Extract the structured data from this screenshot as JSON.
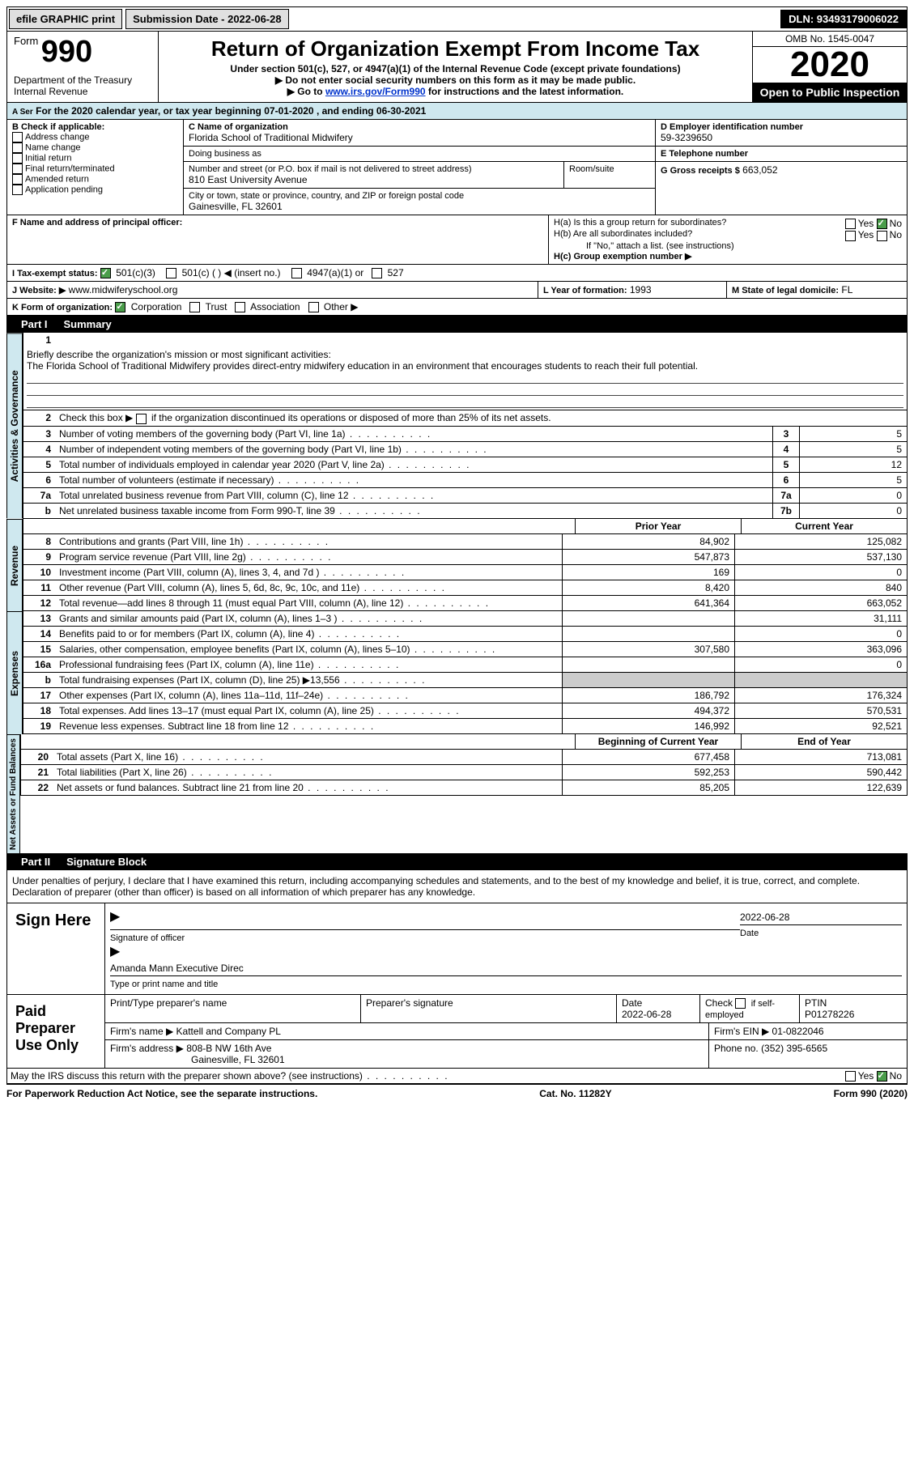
{
  "topbar": {
    "efile": "efile GRAPHIC print",
    "submission": "Submission Date - 2022-06-28",
    "dln": "DLN: 93493179006022"
  },
  "header": {
    "form_label": "Form",
    "form_no": "990",
    "dept": "Department of the Treasury\nInternal Revenue",
    "a_ser": "A Ser",
    "title": "Return of Organization Exempt From Income Tax",
    "sub1": "Under section 501(c), 527, or 4947(a)(1) of the Internal Revenue Code (except private foundations)",
    "sub2": "▶ Do not enter social security numbers on this form as it may be made public.",
    "sub3_pre": "▶ Go to ",
    "sub3_link": "www.irs.gov/Form990",
    "sub3_post": " for instructions and the latest information.",
    "omb": "OMB No. 1545-0047",
    "year": "2020",
    "open": "Open to Public Inspection"
  },
  "period": "For the 2020 calendar year, or tax year beginning 07-01-2020    , and ending 06-30-2021",
  "sectionB": {
    "label": "B Check if applicable:",
    "items": [
      "Address change",
      "Name change",
      "Initial return",
      "Final return/terminated",
      "Amended return",
      "Application pending"
    ]
  },
  "sectionC": {
    "name_label": "C Name of organization",
    "name": "Florida School of Traditional Midwifery",
    "dba_label": "Doing business as",
    "dba": "",
    "addr_label": "Number and street (or P.O. box if mail is not delivered to street address)",
    "room_label": "Room/suite",
    "addr": "810 East University Avenue",
    "city_label": "City or town, state or province, country, and ZIP or foreign postal code",
    "city": "Gainesville, FL  32601"
  },
  "sectionD": {
    "label": "D Employer identification number",
    "value": "59-3239650"
  },
  "sectionE": {
    "label": "E Telephone number",
    "value": ""
  },
  "sectionG": {
    "label": "G Gross receipts $",
    "value": "663,052"
  },
  "sectionF": {
    "label": "F  Name and address of principal officer:",
    "value": ""
  },
  "sectionH": {
    "a": "H(a)  Is this a group return for subordinates?",
    "a_yes": "Yes",
    "a_no": "No",
    "b": "H(b)  Are all subordinates included?",
    "b_yes": "Yes",
    "b_no": "No",
    "b_note": "If \"No,\" attach a list. (see instructions)",
    "c": "H(c)  Group exemption number ▶"
  },
  "sectionI": {
    "label": "I    Tax-exempt status:",
    "opts": [
      "501(c)(3)",
      "501(c) (  ) ◀ (insert no.)",
      "4947(a)(1) or",
      "527"
    ]
  },
  "sectionJ": {
    "label": "J    Website: ▶",
    "value": "www.midwiferyschool.org"
  },
  "sectionK": {
    "label": "K Form of organization:",
    "opts": [
      "Corporation",
      "Trust",
      "Association",
      "Other ▶"
    ]
  },
  "sectionL": {
    "label": "L Year of formation:",
    "value": "1993"
  },
  "sectionM": {
    "label": "M State of legal domicile:",
    "value": "FL"
  },
  "part1": {
    "label": "Part I",
    "title": "Summary"
  },
  "mission": {
    "no": "1",
    "label": "Briefly describe the organization's mission or most significant activities:",
    "text": "The Florida School of Traditional Midwifery provides direct-entry midwifery education in an environment that encourages students to reach their full potential."
  },
  "line2": {
    "no": "2",
    "text": "Check this box ▶",
    "suffix": " if the organization discontinued its operations or disposed of more than 25% of its net assets."
  },
  "governance_label": "Activities & Governance",
  "gov_lines": [
    {
      "no": "3",
      "desc": "Number of voting members of the governing body (Part VI, line 1a)",
      "box": "3",
      "val": "5"
    },
    {
      "no": "4",
      "desc": "Number of independent voting members of the governing body (Part VI, line 1b)",
      "box": "4",
      "val": "5"
    },
    {
      "no": "5",
      "desc": "Total number of individuals employed in calendar year 2020 (Part V, line 2a)",
      "box": "5",
      "val": "12"
    },
    {
      "no": "6",
      "desc": "Total number of volunteers (estimate if necessary)",
      "box": "6",
      "val": "5"
    },
    {
      "no": "7a",
      "desc": "Total unrelated business revenue from Part VIII, column (C), line 12",
      "box": "7a",
      "val": "0"
    },
    {
      "no": "b",
      "desc": "Net unrelated business taxable income from Form 990-T, line 39",
      "box": "7b",
      "val": "0"
    }
  ],
  "col_headers": {
    "prior": "Prior Year",
    "current": "Current Year",
    "begin": "Beginning of Current Year",
    "end": "End of Year"
  },
  "revenue_label": "Revenue",
  "rev_lines": [
    {
      "no": "8",
      "desc": "Contributions and grants (Part VIII, line 1h)",
      "prior": "84,902",
      "cur": "125,082"
    },
    {
      "no": "9",
      "desc": "Program service revenue (Part VIII, line 2g)",
      "prior": "547,873",
      "cur": "537,130"
    },
    {
      "no": "10",
      "desc": "Investment income (Part VIII, column (A), lines 3, 4, and 7d )",
      "prior": "169",
      "cur": "0"
    },
    {
      "no": "11",
      "desc": "Other revenue (Part VIII, column (A), lines 5, 6d, 8c, 9c, 10c, and 11e)",
      "prior": "8,420",
      "cur": "840"
    },
    {
      "no": "12",
      "desc": "Total revenue—add lines 8 through 11 (must equal Part VIII, column (A), line 12)",
      "prior": "641,364",
      "cur": "663,052"
    }
  ],
  "expenses_label": "Expenses",
  "exp_lines": [
    {
      "no": "13",
      "desc": "Grants and similar amounts paid (Part IX, column (A), lines 1–3 )",
      "prior": "",
      "cur": "31,111"
    },
    {
      "no": "14",
      "desc": "Benefits paid to or for members (Part IX, column (A), line 4)",
      "prior": "",
      "cur": "0"
    },
    {
      "no": "15",
      "desc": "Salaries, other compensation, employee benefits (Part IX, column (A), lines 5–10)",
      "prior": "307,580",
      "cur": "363,096"
    },
    {
      "no": "16a",
      "desc": "Professional fundraising fees (Part IX, column (A), line 11e)",
      "prior": "",
      "cur": "0"
    },
    {
      "no": "b",
      "desc": "Total fundraising expenses (Part IX, column (D), line 25) ▶13,556",
      "prior": "grey",
      "cur": "grey"
    },
    {
      "no": "17",
      "desc": "Other expenses (Part IX, column (A), lines 11a–11d, 11f–24e)",
      "prior": "186,792",
      "cur": "176,324"
    },
    {
      "no": "18",
      "desc": "Total expenses. Add lines 13–17 (must equal Part IX, column (A), line 25)",
      "prior": "494,372",
      "cur": "570,531"
    },
    {
      "no": "19",
      "desc": "Revenue less expenses. Subtract line 18 from line 12",
      "prior": "146,992",
      "cur": "92,521"
    }
  ],
  "netassets_label": "Net Assets or Fund Balances",
  "na_lines": [
    {
      "no": "20",
      "desc": "Total assets (Part X, line 16)",
      "prior": "677,458",
      "cur": "713,081"
    },
    {
      "no": "21",
      "desc": "Total liabilities (Part X, line 26)",
      "prior": "592,253",
      "cur": "590,442"
    },
    {
      "no": "22",
      "desc": "Net assets or fund balances. Subtract line 21 from line 20",
      "prior": "85,205",
      "cur": "122,639"
    }
  ],
  "part2": {
    "label": "Part II",
    "title": "Signature Block"
  },
  "penalties": "Under penalties of perjury, I declare that I have examined this return, including accompanying schedules and statements, and to the best of my knowledge and belief, it is true, correct, and complete. Declaration of preparer (other than officer) is based on all information of which preparer has any knowledge.",
  "sign": {
    "label": "Sign Here",
    "sig_label": "Signature of officer",
    "date": "2022-06-28",
    "date_label": "Date",
    "name": "Amanda Mann  Executive Direc",
    "name_label": "Type or print name and title"
  },
  "prep": {
    "label": "Paid Preparer Use Only",
    "h1": "Print/Type preparer's name",
    "h2": "Preparer's signature",
    "h3": "Date",
    "h3v": "2022-06-28",
    "h4": "Check",
    "h4s": "if self-employed",
    "h5": "PTIN",
    "h5v": "P01278226",
    "firm_label": "Firm's name   ▶",
    "firm": "Kattell and Company PL",
    "ein_label": "Firm's EIN ▶",
    "ein": "01-0822046",
    "addr_label": "Firm's address ▶",
    "addr1": "808-B NW 16th Ave",
    "addr2": "Gainesville, FL  32601",
    "phone_label": "Phone no.",
    "phone": "(352) 395-6565"
  },
  "discuss": {
    "text": "May the IRS discuss this return with the preparer shown above? (see instructions)",
    "yes": "Yes",
    "no": "No"
  },
  "footer": {
    "left": "For Paperwork Reduction Act Notice, see the separate instructions.",
    "mid": "Cat. No. 11282Y",
    "right": "Form 990 (2020)"
  }
}
